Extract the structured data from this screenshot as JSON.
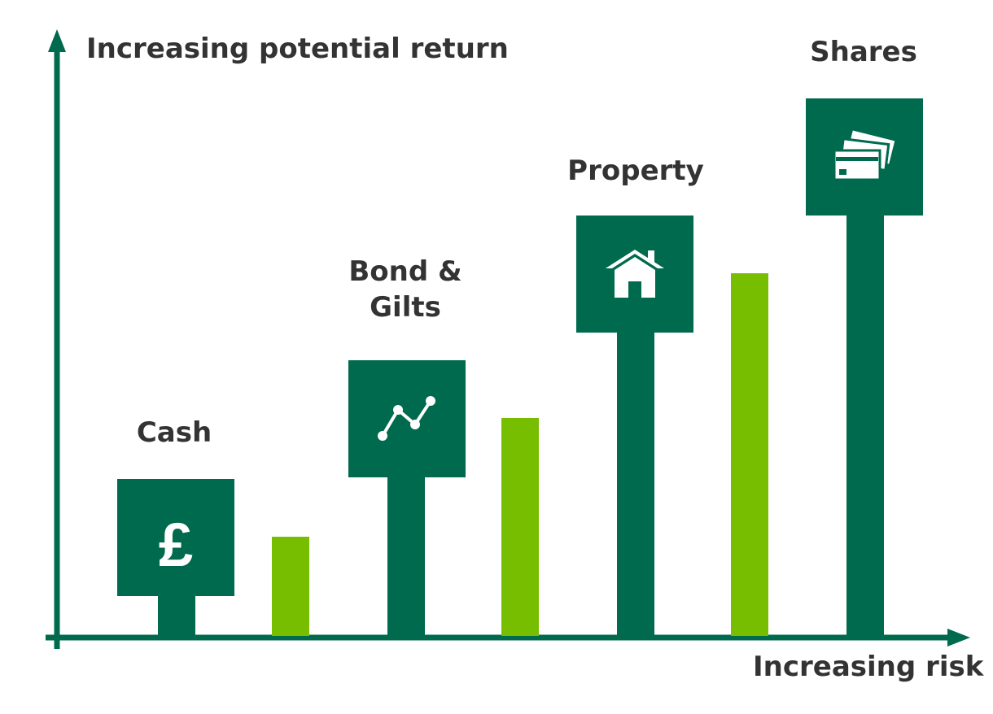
{
  "axes": {
    "y_label": "Increasing potential return",
    "x_label": "Increasing risk"
  },
  "categories": [
    {
      "label_lines": [
        "Cash"
      ],
      "icon": "pound-icon"
    },
    {
      "label_lines": [
        "Bond &",
        "Gilts"
      ],
      "icon": "line-graph-icon"
    },
    {
      "label_lines": [
        "Property"
      ],
      "icon": "house-icon"
    },
    {
      "label_lines": [
        "Shares"
      ],
      "icon": "share-certificates-icon"
    }
  ],
  "icons": {
    "pound": "£"
  },
  "colors": {
    "dark_green": "#006A4E",
    "light_green": "#78BE00",
    "axis": "#006A4E",
    "text": "#333333",
    "icon": "#ffffff"
  }
}
